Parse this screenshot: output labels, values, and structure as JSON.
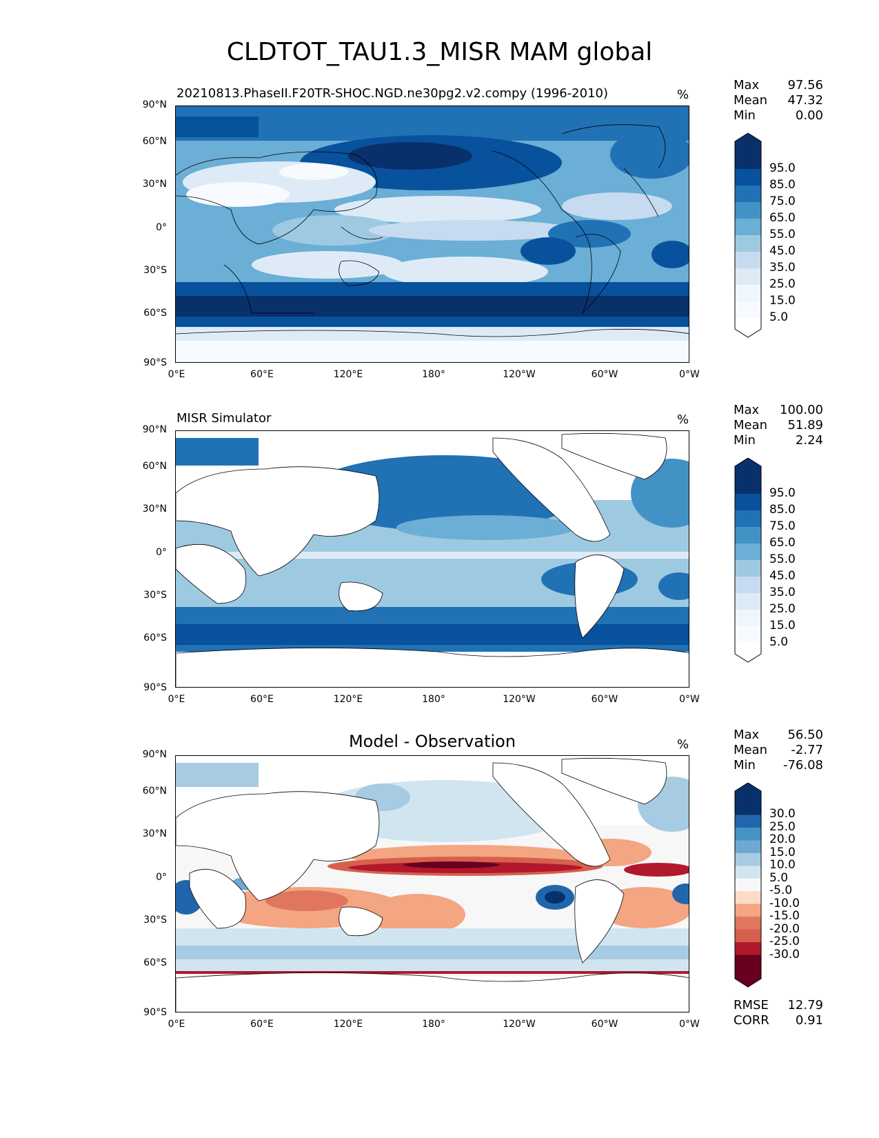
{
  "title": "CLDTOT_TAU1.3_MISR MAM global",
  "axes": {
    "lat_labels": [
      "90°N",
      "60°N",
      "30°N",
      "0°",
      "30°S",
      "60°S",
      "90°S"
    ],
    "lon_labels": [
      "0°E",
      "60°E",
      "120°E",
      "180°",
      "120°W",
      "60°W",
      "0°W"
    ]
  },
  "panels": [
    {
      "title": "20210813.PhaseII.F20TR-SHOC.NGD.ne30pg2.v2.compy (1996-2010)",
      "units": "%",
      "stats": [
        [
          "Max",
          "97.56"
        ],
        [
          "Mean",
          "47.32"
        ],
        [
          "Min",
          "0.00"
        ]
      ],
      "colorbar_labels": [
        "95.0",
        "85.0",
        "75.0",
        "65.0",
        "55.0",
        "45.0",
        "35.0",
        "25.0",
        "15.0",
        "5.0"
      ],
      "colorbar_colors": [
        "#08306b",
        "#08519c",
        "#2171b5",
        "#4292c6",
        "#6baed6",
        "#9ecae1",
        "#c6dbef",
        "#deebf7",
        "#eff6fd",
        "#f7fbff"
      ],
      "top_extend": "#08306b",
      "bottom_extend": "#ffffff"
    },
    {
      "title": "MISR Simulator",
      "units": "%",
      "stats": [
        [
          "Max",
          "100.00"
        ],
        [
          "Mean",
          "51.89"
        ],
        [
          "Min",
          "2.24"
        ]
      ],
      "colorbar_labels": [
        "95.0",
        "85.0",
        "75.0",
        "65.0",
        "55.0",
        "45.0",
        "35.0",
        "25.0",
        "15.0",
        "5.0"
      ],
      "colorbar_colors": [
        "#08306b",
        "#08519c",
        "#2171b5",
        "#4292c6",
        "#6baed6",
        "#9ecae1",
        "#c6dbef",
        "#deebf7",
        "#eff6fd",
        "#f7fbff"
      ],
      "top_extend": "#08306b",
      "bottom_extend": "#ffffff"
    },
    {
      "title": "Model - Observation",
      "units": "%",
      "stats": [
        [
          "Max",
          "56.50"
        ],
        [
          "Mean",
          "-2.77"
        ],
        [
          "Min",
          "-76.08"
        ]
      ],
      "colorbar_labels": [
        "30.0",
        "25.0",
        "20.0",
        "15.0",
        "10.0",
        "5.0",
        "-5.0",
        "-10.0",
        "-15.0",
        "-20.0",
        "-25.0",
        "-30.0"
      ],
      "colorbar_colors": [
        "#08306b",
        "#2166ac",
        "#4393c3",
        "#6fa8d2",
        "#a6cbe2",
        "#d1e5f0",
        "#f7f7f7",
        "#fddbc7",
        "#f4a582",
        "#e07560",
        "#d6604d",
        "#b2182b",
        "#67001f"
      ],
      "top_extend": "#08306b",
      "bottom_extend": "#67001f",
      "extra_stats": [
        [
          "RMSE",
          "12.79"
        ],
        [
          "CORR",
          "0.91"
        ]
      ]
    }
  ]
}
